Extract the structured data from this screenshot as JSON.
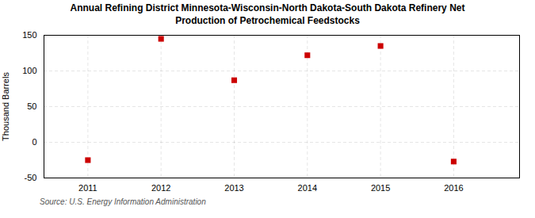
{
  "chart_data": {
    "type": "scatter",
    "title": "Annual Refining District Minnesota-Wisconsin-North Dakota-South Dakota Refinery Net\nProduction of Petrochemical Feedstocks",
    "ylabel": "Thousand Barrels",
    "source": "Source: U.S. Energy Information Administration",
    "x": [
      2011,
      2012,
      2013,
      2014,
      2015,
      2016
    ],
    "values": [
      -25,
      145,
      87,
      122,
      135,
      -27
    ],
    "color": "#cc0000",
    "marker": "square",
    "xlim": [
      2010.4,
      2016.9
    ],
    "xticks": [
      2011,
      2012,
      2013,
      2014,
      2015,
      2016
    ],
    "ylim": [
      -50,
      150
    ],
    "yticks": [
      -50,
      0,
      50,
      100,
      150
    ],
    "grid": true
  }
}
